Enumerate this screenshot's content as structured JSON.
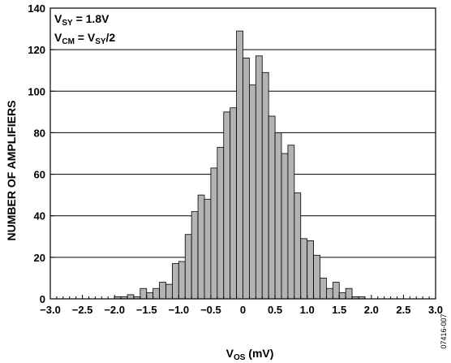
{
  "chart_data": {
    "type": "bar",
    "xlabel": {
      "main": "V",
      "sub": "OS",
      "rest": " (mV)"
    },
    "ylabel": "NUMBER OF AMPLIFIERS",
    "xlim": [
      -3.0,
      3.0
    ],
    "ylim": [
      0,
      140
    ],
    "bin_width": 0.1,
    "grid": "horizontal",
    "x_tick_labels": [
      "−3.0",
      "−2.5",
      "−2.0",
      "−1.5",
      "−1.0",
      "−0.5",
      "0",
      "0.5",
      "1.0",
      "1.5",
      "2.0",
      "2.5",
      "3.0"
    ],
    "y_tick_labels": [
      "0",
      "20",
      "40",
      "60",
      "80",
      "100",
      "120",
      "140"
    ],
    "annotations": [
      {
        "main": "V",
        "sub": "SY",
        "rest": " = 1.8V"
      },
      {
        "main": "V",
        "sub": "CM",
        "rest": " = V",
        "sub2": "SY",
        "rest2": "/2"
      }
    ],
    "bins": [
      {
        "x": -2.0,
        "value": 1
      },
      {
        "x": -1.9,
        "value": 1
      },
      {
        "x": -1.8,
        "value": 2
      },
      {
        "x": -1.7,
        "value": 1
      },
      {
        "x": -1.6,
        "value": 5
      },
      {
        "x": -1.5,
        "value": 3
      },
      {
        "x": -1.4,
        "value": 5
      },
      {
        "x": -1.3,
        "value": 8
      },
      {
        "x": -1.2,
        "value": 7
      },
      {
        "x": -1.1,
        "value": 17
      },
      {
        "x": -1.0,
        "value": 18
      },
      {
        "x": -0.9,
        "value": 31
      },
      {
        "x": -0.8,
        "value": 42
      },
      {
        "x": -0.7,
        "value": 50
      },
      {
        "x": -0.6,
        "value": 48
      },
      {
        "x": -0.5,
        "value": 63
      },
      {
        "x": -0.4,
        "value": 73
      },
      {
        "x": -0.3,
        "value": 90
      },
      {
        "x": -0.2,
        "value": 92
      },
      {
        "x": -0.1,
        "value": 129
      },
      {
        "x": 0.0,
        "value": 116
      },
      {
        "x": 0.1,
        "value": 103
      },
      {
        "x": 0.2,
        "value": 117
      },
      {
        "x": 0.3,
        "value": 109
      },
      {
        "x": 0.4,
        "value": 88
      },
      {
        "x": 0.5,
        "value": 80
      },
      {
        "x": 0.6,
        "value": 70
      },
      {
        "x": 0.7,
        "value": 74
      },
      {
        "x": 0.8,
        "value": 51
      },
      {
        "x": 0.9,
        "value": 29
      },
      {
        "x": 1.0,
        "value": 28
      },
      {
        "x": 1.1,
        "value": 21
      },
      {
        "x": 1.2,
        "value": 10
      },
      {
        "x": 1.3,
        "value": 5
      },
      {
        "x": 1.4,
        "value": 8
      },
      {
        "x": 1.5,
        "value": 3
      },
      {
        "x": 1.6,
        "value": 5
      },
      {
        "x": 1.7,
        "value": 1
      },
      {
        "x": 1.8,
        "value": 1
      }
    ],
    "colors": {
      "bar_fill": "#b3b3b3",
      "bar_stroke": "#000000",
      "grid": "#000000",
      "text": "#000000"
    }
  },
  "figure_id": "07416-007"
}
